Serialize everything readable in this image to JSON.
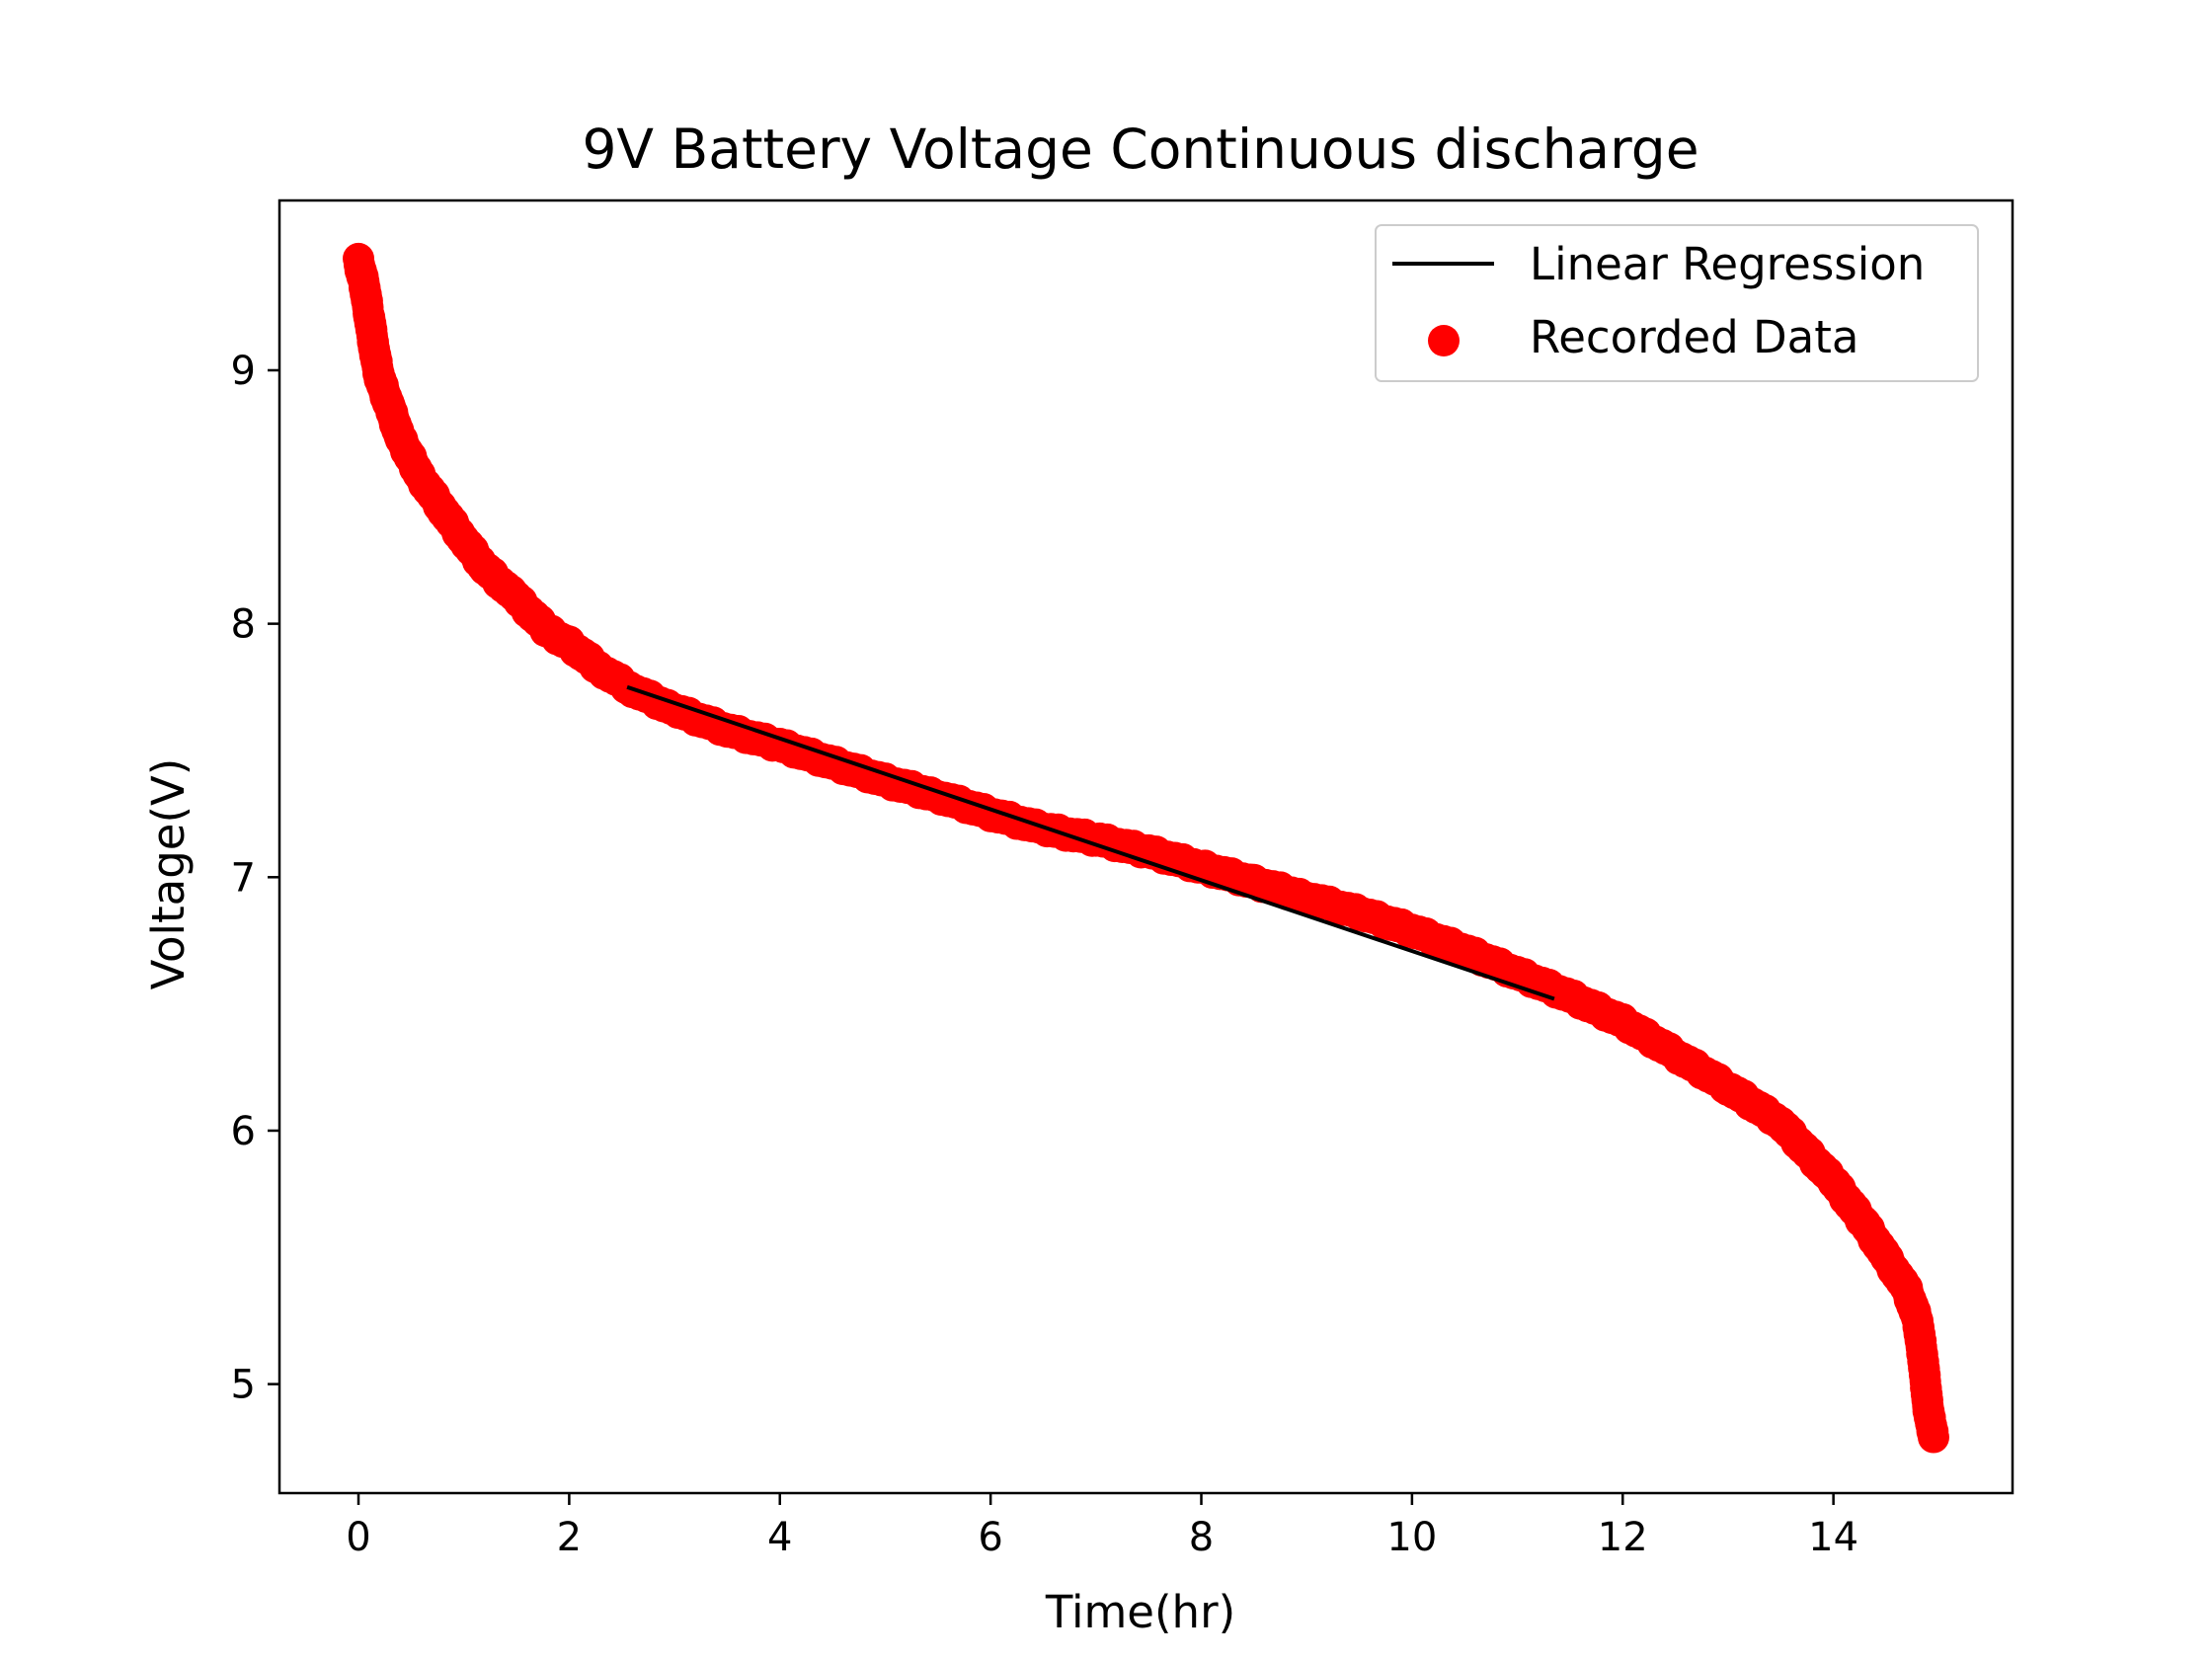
{
  "chart_data": {
    "type": "scatter",
    "title": "9V Battery Voltage Continuous discharge",
    "xlabel": "Time(hr)",
    "ylabel": "Voltage(V)",
    "xlim": [
      -0.75,
      15.7
    ],
    "ylim": [
      4.57,
      9.67
    ],
    "xticks": [
      0,
      2,
      4,
      6,
      8,
      10,
      12,
      14
    ],
    "yticks": [
      5,
      6,
      7,
      8,
      9
    ],
    "grid": false,
    "legend_position": "top-right",
    "series": [
      {
        "name": "Linear Regression",
        "kind": "line",
        "color": "#000000",
        "x": [
          2.55,
          11.35
        ],
        "y": [
          7.75,
          6.52
        ]
      },
      {
        "name": "Recorded Data",
        "kind": "scatter",
        "color": "#ff0000",
        "x": [
          0.0,
          0.05,
          0.1,
          0.15,
          0.2,
          0.3,
          0.4,
          0.5,
          0.6,
          0.8,
          1.0,
          1.2,
          1.5,
          1.8,
          2.0,
          2.3,
          2.6,
          3.0,
          3.5,
          4.0,
          4.5,
          5.0,
          5.5,
          6.0,
          6.5,
          7.0,
          7.5,
          8.0,
          8.5,
          9.0,
          9.5,
          10.0,
          10.5,
          11.0,
          11.5,
          12.0,
          12.5,
          13.0,
          13.5,
          14.0,
          14.3,
          14.5,
          14.7,
          14.8,
          14.85,
          14.88,
          14.9,
          14.93,
          14.95
        ],
        "y": [
          9.43,
          9.35,
          9.22,
          9.08,
          8.97,
          8.85,
          8.73,
          8.65,
          8.57,
          8.45,
          8.33,
          8.22,
          8.1,
          7.97,
          7.92,
          7.82,
          7.74,
          7.66,
          7.58,
          7.52,
          7.45,
          7.38,
          7.32,
          7.25,
          7.19,
          7.15,
          7.1,
          7.04,
          6.98,
          6.92,
          6.86,
          6.79,
          6.71,
          6.62,
          6.53,
          6.43,
          6.3,
          6.17,
          6.03,
          5.8,
          5.63,
          5.5,
          5.37,
          5.25,
          5.1,
          4.98,
          4.9,
          4.83,
          4.79
        ]
      }
    ]
  }
}
